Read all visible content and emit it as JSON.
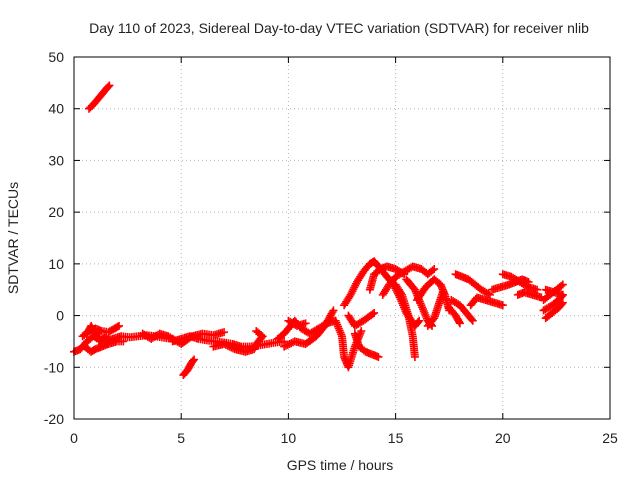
{
  "chart_data": {
    "type": "scatter",
    "title": "Day 110 of 2023, Sidereal Day-to-day VTEC variation (SDTVAR) for receiver nlib",
    "xlabel": "GPS time / hours",
    "ylabel": "SDTVAR / TECUs",
    "xlim": [
      0,
      25
    ],
    "ylim": [
      -20,
      50
    ],
    "xticks": [
      0,
      5,
      10,
      15,
      20,
      25
    ],
    "yticks": [
      -20,
      -10,
      0,
      10,
      20,
      30,
      40,
      50
    ],
    "grid": true,
    "marker": "plus",
    "color": "#ff0000",
    "series": [
      {
        "name": "tracks",
        "segments": [
          [
            [
              0.0,
              -7.0
            ],
            [
              0.3,
              -6.5
            ],
            [
              0.6,
              -5.0
            ],
            [
              0.9,
              -4.0
            ],
            [
              1.2,
              -4.5
            ],
            [
              1.5,
              -5.0
            ],
            [
              1.8,
              -4.5
            ],
            [
              2.2,
              -4.0
            ],
            [
              2.6,
              -4.2
            ],
            [
              3.0,
              -4.0
            ],
            [
              3.4,
              -3.8
            ],
            [
              3.8,
              -4.0
            ],
            [
              4.2,
              -4.3
            ],
            [
              4.6,
              -4.5
            ]
          ],
          [
            [
              0.4,
              -4.0
            ],
            [
              0.7,
              -3.0
            ],
            [
              1.0,
              -2.5
            ],
            [
              1.3,
              -3.0
            ],
            [
              1.6,
              -3.2
            ],
            [
              1.9,
              -2.5
            ],
            [
              2.1,
              -2.0
            ]
          ],
          [
            [
              0.5,
              -6.0
            ],
            [
              0.8,
              -7.0
            ],
            [
              1.0,
              -6.5
            ],
            [
              1.3,
              -6.0
            ],
            [
              1.6,
              -5.5
            ],
            [
              2.0,
              -5.0
            ],
            [
              2.3,
              -5.0
            ]
          ],
          [
            [
              0.6,
              -3.5
            ],
            [
              0.8,
              -2.0
            ],
            [
              1.0,
              -3.5
            ],
            [
              1.2,
              -5.0
            ],
            [
              1.5,
              -4.0
            ]
          ],
          [
            [
              0.7,
              40.0
            ],
            [
              0.9,
              40.8
            ],
            [
              1.1,
              41.8
            ],
            [
              1.3,
              42.8
            ],
            [
              1.5,
              43.8
            ],
            [
              1.65,
              44.5
            ]
          ],
          [
            [
              4.6,
              -5.0
            ],
            [
              5.0,
              -4.5
            ],
            [
              5.4,
              -4.0
            ],
            [
              5.8,
              -4.5
            ],
            [
              6.2,
              -4.8
            ],
            [
              6.6,
              -5.0
            ],
            [
              7.0,
              -5.2
            ],
            [
              7.4,
              -5.5
            ],
            [
              7.8,
              -6.0
            ],
            [
              8.2,
              -6.0
            ],
            [
              8.6,
              -5.8
            ],
            [
              9.0,
              -5.5
            ],
            [
              9.4,
              -5.2
            ],
            [
              9.8,
              -5.0
            ]
          ],
          [
            [
              3.2,
              -3.5
            ],
            [
              3.6,
              -4.5
            ],
            [
              4.0,
              -3.5
            ],
            [
              4.4,
              -4.0
            ],
            [
              5.0,
              -5.5
            ],
            [
              5.5,
              -4.0
            ],
            [
              6.0,
              -3.5
            ],
            [
              6.5,
              -3.8
            ],
            [
              7.0,
              -3.2
            ]
          ],
          [
            [
              5.1,
              -11.5
            ],
            [
              5.3,
              -10.5
            ],
            [
              5.5,
              -9.0
            ],
            [
              5.6,
              -8.5
            ]
          ],
          [
            [
              6.5,
              -6.0
            ],
            [
              7.0,
              -5.5
            ],
            [
              7.5,
              -6.5
            ],
            [
              8.0,
              -7.0
            ],
            [
              8.4,
              -6.5
            ],
            [
              8.6,
              -5.0
            ],
            [
              8.8,
              -4.0
            ],
            [
              8.5,
              -3.0
            ]
          ],
          [
            [
              9.5,
              -4.5
            ],
            [
              9.8,
              -3.5
            ],
            [
              10.1,
              -2.0
            ],
            [
              10.3,
              -1.0
            ],
            [
              10.6,
              -2.5
            ],
            [
              11.0,
              -3.5
            ],
            [
              11.4,
              -2.5
            ],
            [
              11.8,
              -1.5
            ],
            [
              12.2,
              -1.0
            ]
          ],
          [
            [
              9.8,
              -6.0
            ],
            [
              10.3,
              -5.0
            ],
            [
              10.8,
              -5.5
            ],
            [
              11.3,
              -4.0
            ],
            [
              11.7,
              -2.0
            ],
            [
              12.1,
              1.0
            ]
          ],
          [
            [
              10.0,
              -1.0
            ],
            [
              10.4,
              -2.0
            ],
            [
              10.8,
              -1.5
            ]
          ],
          [
            [
              12.2,
              -1.0
            ],
            [
              12.5,
              -4.0
            ],
            [
              12.6,
              -8.0
            ],
            [
              12.8,
              -10.0
            ],
            [
              13.1,
              -6.0
            ],
            [
              13.4,
              -3.0
            ]
          ],
          [
            [
              12.6,
              2.0
            ],
            [
              12.9,
              4.0
            ],
            [
              13.2,
              6.5
            ],
            [
              13.5,
              8.5
            ],
            [
              13.8,
              10.0
            ],
            [
              14.0,
              10.5
            ],
            [
              14.2,
              9.5
            ],
            [
              14.5,
              8.0
            ],
            [
              14.9,
              6.0
            ],
            [
              15.2,
              3.5
            ],
            [
              15.5,
              0.5
            ],
            [
              15.9,
              -2.0
            ],
            [
              16.1,
              -1.0
            ]
          ],
          [
            [
              13.1,
              -3.5
            ],
            [
              13.3,
              -6.0
            ],
            [
              13.6,
              -7.0
            ],
            [
              13.9,
              -7.5
            ],
            [
              14.2,
              -8.0
            ]
          ],
          [
            [
              12.8,
              0.0
            ],
            [
              13.1,
              -2.0
            ],
            [
              13.5,
              -1.0
            ],
            [
              14.0,
              0.5
            ]
          ],
          [
            [
              14.4,
              4.0
            ],
            [
              14.7,
              6.0
            ],
            [
              15.0,
              7.5
            ],
            [
              15.4,
              8.5
            ],
            [
              15.8,
              9.5
            ],
            [
              16.2,
              9.0
            ],
            [
              16.5,
              8.0
            ],
            [
              16.8,
              9.0
            ]
          ],
          [
            [
              13.8,
              5.0
            ],
            [
              14.0,
              8.0
            ],
            [
              14.3,
              9.0
            ],
            [
              14.6,
              9.5
            ],
            [
              15.0,
              9.0
            ],
            [
              15.4,
              8.0
            ]
          ],
          [
            [
              15.0,
              6.0
            ],
            [
              15.3,
              4.0
            ],
            [
              15.6,
              0.0
            ],
            [
              15.8,
              -4.0
            ],
            [
              15.9,
              -8.0
            ]
          ],
          [
            [
              15.5,
              7.0
            ],
            [
              15.9,
              5.0
            ],
            [
              16.2,
              2.0
            ],
            [
              16.5,
              -1.0
            ],
            [
              16.7,
              -2.0
            ]
          ],
          [
            [
              16.0,
              3.0
            ],
            [
              16.4,
              5.5
            ],
            [
              16.8,
              7.0
            ],
            [
              17.1,
              6.0
            ],
            [
              17.3,
              4.0
            ],
            [
              17.5,
              1.0
            ]
          ],
          [
            [
              16.5,
              -2.0
            ],
            [
              16.8,
              -0.5
            ],
            [
              17.0,
              2.0
            ],
            [
              17.2,
              4.5
            ]
          ],
          [
            [
              17.8,
              8.0
            ],
            [
              18.1,
              7.5
            ],
            [
              18.4,
              7.0
            ],
            [
              18.7,
              6.0
            ],
            [
              19.0,
              5.0
            ],
            [
              19.4,
              4.0
            ]
          ],
          [
            [
              17.6,
              3.0
            ],
            [
              18.0,
              2.0
            ],
            [
              18.4,
              0.0
            ],
            [
              18.6,
              -1.0
            ]
          ],
          [
            [
              17.5,
              1.5
            ],
            [
              17.8,
              0.0
            ],
            [
              18.0,
              -1.5
            ]
          ],
          [
            [
              18.5,
              2.0
            ],
            [
              18.8,
              3.5
            ],
            [
              19.2,
              3.0
            ],
            [
              19.6,
              2.5
            ],
            [
              20.0,
              2.0
            ]
          ],
          [
            [
              19.5,
              5.0
            ],
            [
              19.9,
              5.5
            ],
            [
              20.3,
              6.0
            ],
            [
              20.6,
              6.5
            ],
            [
              20.9,
              7.0
            ],
            [
              21.2,
              6.5
            ]
          ],
          [
            [
              20.0,
              8.0
            ],
            [
              20.4,
              7.5
            ],
            [
              20.8,
              6.5
            ],
            [
              21.2,
              5.5
            ],
            [
              21.6,
              5.0
            ]
          ],
          [
            [
              20.7,
              4.0
            ],
            [
              21.0,
              4.5
            ],
            [
              21.4,
              4.0
            ],
            [
              21.8,
              3.5
            ]
          ],
          [
            [
              21.9,
              3.0
            ],
            [
              22.2,
              4.0
            ],
            [
              22.5,
              5.0
            ],
            [
              22.8,
              6.0
            ]
          ],
          [
            [
              21.9,
              1.0
            ],
            [
              22.3,
              2.0
            ],
            [
              22.6,
              3.0
            ],
            [
              22.8,
              4.0
            ]
          ],
          [
            [
              22.0,
              -0.5
            ],
            [
              22.3,
              0.5
            ],
            [
              22.6,
              1.5
            ],
            [
              22.8,
              2.5
            ]
          ],
          [
            [
              22.0,
              5.0
            ],
            [
              22.4,
              4.5
            ],
            [
              22.8,
              4.0
            ]
          ]
        ]
      }
    ]
  }
}
